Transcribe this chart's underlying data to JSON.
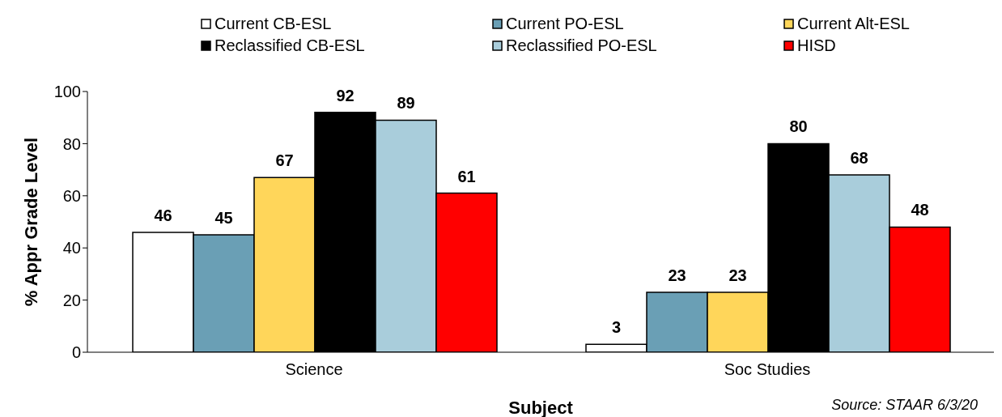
{
  "chart_data": {
    "type": "bar",
    "xlabel": "Subject",
    "ylabel": "% Appr Grade Level",
    "categories": [
      "Science",
      "Soc Studies"
    ],
    "series": [
      {
        "name": "Current CB-ESL",
        "color": "#ffffff",
        "values": [
          46,
          3
        ]
      },
      {
        "name": "Current PO-ESL",
        "color": "#6a9fb5",
        "values": [
          45,
          23
        ]
      },
      {
        "name": "Current Alt-ESL",
        "color": "#ffd65a",
        "values": [
          67,
          23
        ]
      },
      {
        "name": "Reclassified CB-ESL",
        "color": "#000000",
        "values": [
          92,
          80
        ]
      },
      {
        "name": "Reclassified PO-ESL",
        "color": "#a9cddb",
        "values": [
          89,
          68
        ]
      },
      {
        "name": "HISD",
        "color": "#ff0000",
        "values": [
          61,
          48
        ]
      }
    ],
    "ylim": [
      0,
      100
    ],
    "yticks": [
      0,
      20,
      40,
      60,
      80,
      100
    ],
    "grid": false,
    "legend": "top",
    "data_labels": true,
    "annotations": [
      "Source: STAAR 6/3/20"
    ]
  }
}
